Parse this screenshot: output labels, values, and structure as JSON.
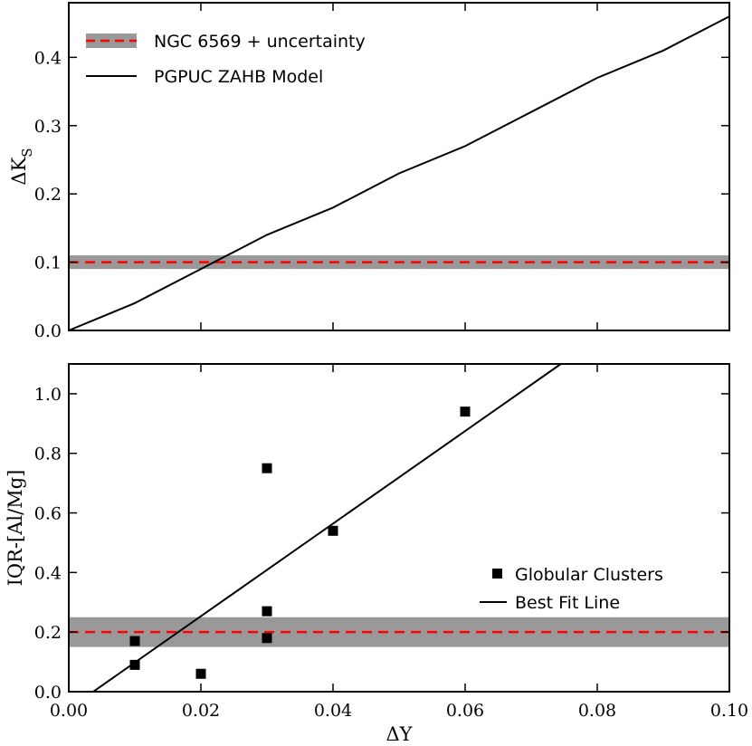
{
  "colors": {
    "reference_line": "#ff0000",
    "uncertainty_band": "#999999",
    "ink": "#000000"
  },
  "chart_data": [
    {
      "type": "line",
      "panel": "top",
      "title": "",
      "xlabel": "",
      "ylabel_main": "ΔK",
      "ylabel_sub": "S",
      "xlim": [
        0.0,
        0.1
      ],
      "ylim": [
        0.0,
        0.48
      ],
      "xticks": [
        0.0,
        0.02,
        0.04,
        0.06,
        0.08,
        0.1
      ],
      "yticks": [
        0.0,
        0.1,
        0.2,
        0.3,
        0.4
      ],
      "ytick_labels": [
        "0.0",
        "0.1",
        "0.2",
        "0.3",
        "0.4"
      ],
      "series": [
        {
          "name": "PGPUC ZAHB Model",
          "kind": "line",
          "color": "#000000",
          "x": [
            0.0,
            0.01,
            0.02,
            0.03,
            0.04,
            0.05,
            0.06,
            0.07,
            0.08,
            0.09,
            0.1
          ],
          "y": [
            0.0,
            0.04,
            0.09,
            0.14,
            0.18,
            0.23,
            0.27,
            0.32,
            0.37,
            0.41,
            0.46
          ]
        }
      ],
      "reference": {
        "name": "NGC 6569 + uncertainty",
        "value": 0.1,
        "band": [
          0.09,
          0.11
        ]
      },
      "legend": {
        "position": "top-left",
        "entries": [
          {
            "label": "NGC 6569 + uncertainty",
            "kind": "band-dashed"
          },
          {
            "label": "PGPUC ZAHB Model",
            "kind": "line"
          }
        ]
      }
    },
    {
      "type": "scatter",
      "panel": "bottom",
      "title": "",
      "xlabel": "ΔY",
      "ylabel": "IQR-[Al/Mg]",
      "xlim": [
        0.0,
        0.1
      ],
      "ylim": [
        0.0,
        1.1
      ],
      "xticks": [
        0.0,
        0.02,
        0.04,
        0.06,
        0.08,
        0.1
      ],
      "xtick_labels": [
        "0.00",
        "0.02",
        "0.04",
        "0.06",
        "0.08",
        "0.10"
      ],
      "yticks": [
        0.0,
        0.2,
        0.4,
        0.6,
        0.8,
        1.0
      ],
      "ytick_labels": [
        "0.0",
        "0.2",
        "0.4",
        "0.6",
        "0.8",
        "1.0"
      ],
      "series": [
        {
          "name": "Globular Clusters",
          "kind": "scatter",
          "marker": "square",
          "color": "#000000",
          "x": [
            0.01,
            0.01,
            0.02,
            0.03,
            0.03,
            0.03,
            0.04,
            0.06
          ],
          "y": [
            0.17,
            0.09,
            0.06,
            0.75,
            0.27,
            0.18,
            0.54,
            0.94
          ]
        },
        {
          "name": "Best Fit Line",
          "kind": "line",
          "color": "#000000",
          "x": [
            0.0037,
            0.0745
          ],
          "y": [
            0.0,
            1.1
          ]
        }
      ],
      "reference": {
        "name": "NGC 6569",
        "value": 0.2,
        "band": [
          0.15,
          0.25
        ]
      },
      "legend": {
        "position": "center-right",
        "entries": [
          {
            "label": "Globular Clusters",
            "kind": "marker"
          },
          {
            "label": "Best Fit Line",
            "kind": "line"
          }
        ]
      }
    }
  ]
}
